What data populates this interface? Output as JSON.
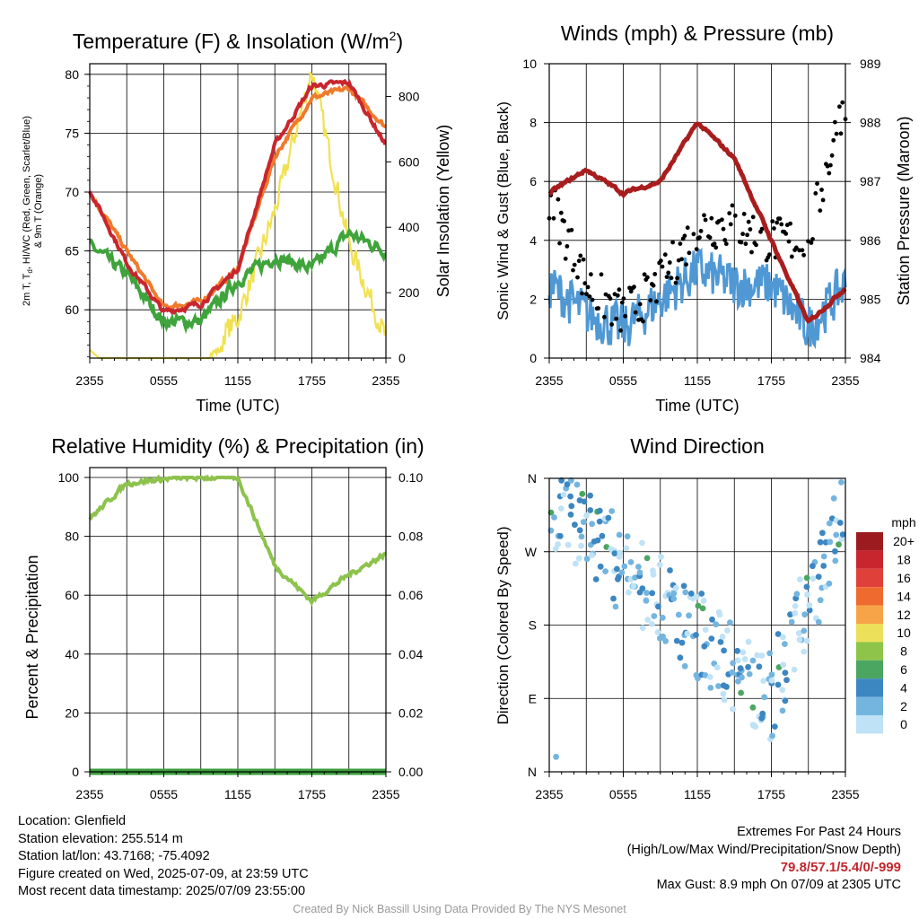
{
  "colors": {
    "red": "#c8262e",
    "orange": "#ef7a2c",
    "green": "#3fa43b",
    "yellow": "#f1e150",
    "maroon": "#a81d1d",
    "blue": "#4f98d4",
    "rh": "#8dc24c",
    "precip": "#3a9d3c"
  },
  "x_ticks": [
    "2355",
    "0555",
    "1155",
    "1755",
    "2355"
  ],
  "panels": {
    "temp": {
      "title_main": "Temperature (F) & Insolation (W/m",
      "title_sup": "2",
      "title_end": ")",
      "ylabel_line1": "2m T, T",
      "ylabel_sub": "d",
      "ylabel_line1_end": ", HI/WC (Red, Green, Scarlet/Blue)",
      "ylabel_line2": "& 9m T (Orange)",
      "y2label": "Solar Insolation (Yellow)",
      "xlabel": "Time (UTC)",
      "yticks": [
        "60",
        "65",
        "70",
        "75",
        "80"
      ],
      "y2ticks": [
        "0",
        "200",
        "400",
        "600",
        "800"
      ]
    },
    "wind": {
      "title": "Winds (mph) & Pressure (mb)",
      "ylabel": "Sonic Wind & Gust (Blue, Black)",
      "y2label": "Station Pressure (Maroon)",
      "xlabel": "Time (UTC)",
      "yticks": [
        "0",
        "2",
        "4",
        "6",
        "8",
        "10"
      ],
      "y2ticks": [
        "984",
        "985",
        "986",
        "987",
        "988",
        "989"
      ]
    },
    "rh": {
      "title": "Relative Humidity (%) & Precipitation (in)",
      "ylabel": "Percent & Precipitation",
      "yticks": [
        "0",
        "20",
        "40",
        "60",
        "80",
        "100"
      ],
      "y2ticks": [
        "0.00",
        "0.02",
        "0.04",
        "0.06",
        "0.08",
        "0.10"
      ]
    },
    "dir": {
      "title": "Wind Direction",
      "ylabel": "Direction (Colored By Speed)",
      "yticks": [
        "N",
        "E",
        "S",
        "W",
        "N"
      ],
      "legend_title": "mph",
      "legend_labels": [
        "20+",
        "18",
        "16",
        "14",
        "12",
        "10",
        "8",
        "6",
        "4",
        "2",
        "0"
      ],
      "legend_colors": [
        "#9b1b1e",
        "#c8262e",
        "#e0403a",
        "#ef6a2e",
        "#f6a447",
        "#ece05a",
        "#8ec44a",
        "#4aa661",
        "#3c86c2",
        "#74b5e0",
        "#bfe2f6"
      ]
    }
  },
  "chart_data": [
    {
      "type": "line",
      "title": "Temperature (F) & Insolation (W/m2)",
      "xlabel": "Time (UTC)",
      "x": [
        "2355",
        "0255",
        "0555",
        "0855",
        "1155",
        "1455",
        "1755",
        "2055",
        "2355"
      ],
      "ylim": [
        55.9,
        80.9
      ],
      "y2lim": [
        0,
        900
      ],
      "series": [
        {
          "name": "2m T (Red)",
          "values": [
            70.2,
            64.0,
            59.8,
            60.5,
            63.5,
            74.0,
            79.0,
            79.3,
            74.0
          ]
        },
        {
          "name": "9m T (Orange)",
          "values": [
            70.0,
            65.0,
            60.2,
            60.7,
            63.5,
            73.0,
            78.0,
            78.8,
            75.5
          ]
        },
        {
          "name": "Td (Green)",
          "values": [
            65.5,
            63.0,
            59.0,
            59.0,
            62.5,
            64.5,
            63.5,
            66.5,
            65.0
          ]
        },
        {
          "name": "Solar Insolation (Yellow)",
          "axis": "y2",
          "values": [
            30,
            0,
            0,
            0,
            120,
            450,
            880,
            350,
            60
          ]
        }
      ]
    },
    {
      "type": "line",
      "title": "Winds (mph) & Pressure (mb)",
      "xlabel": "Time (UTC)",
      "x": [
        "2355",
        "0255",
        "0555",
        "0855",
        "1155",
        "1455",
        "1755",
        "2055",
        "2355"
      ],
      "ylim": [
        0,
        10
      ],
      "y2lim": [
        984,
        989
      ],
      "series": [
        {
          "name": "Sonic Wind (Blue)",
          "values": [
            2.5,
            1.5,
            1.0,
            2.0,
            3.0,
            2.5,
            2.5,
            1.0,
            2.5
          ]
        },
        {
          "name": "Gust (Black)",
          "type": "scatter",
          "values": [
            5.5,
            2.5,
            1.5,
            2.5,
            4.5,
            4.5,
            4.0,
            4.0,
            8.9
          ]
        },
        {
          "name": "Station Pressure (Maroon)",
          "axis": "y2",
          "values": [
            986.8,
            987.2,
            986.8,
            987.0,
            988.0,
            987.4,
            986.0,
            984.6,
            985.2
          ]
        }
      ]
    },
    {
      "type": "line",
      "title": "Relative Humidity (%) & Precipitation (in)",
      "x": [
        "2355",
        "0255",
        "0555",
        "0855",
        "1155",
        "1455",
        "1755",
        "2055",
        "2355"
      ],
      "ylim": [
        0,
        100
      ],
      "y2lim": [
        0,
        0.1
      ],
      "series": [
        {
          "name": "Relative Humidity",
          "values": [
            86,
            98,
            99.5,
            100,
            100,
            70,
            58,
            67,
            74
          ]
        },
        {
          "name": "Precipitation",
          "axis": "y2",
          "values": [
            0,
            0,
            0,
            0,
            0,
            0,
            0,
            0,
            0
          ]
        }
      ]
    },
    {
      "type": "scatter",
      "title": "Wind Direction",
      "ylabel": "Direction (Colored By Speed)",
      "x": [
        "2355",
        "0555",
        "1155",
        "1755",
        "2355"
      ],
      "y_categories": [
        "N",
        "E",
        "S",
        "W",
        "N"
      ],
      "direction_trend_deg": [
        330,
        250,
        170,
        90,
        320
      ]
    }
  ],
  "footer": {
    "location": "Location: Glenfield",
    "elevation": "Station elevation: 255.514 m",
    "latlon": "Station lat/lon: 43.7168; -75.4092",
    "created": "Figure created on Wed, 2025-07-09, at 23:59 UTC",
    "recent": "Most recent data timestamp: 2025/07/09 23:55:00",
    "extremes_title": "Extremes For Past 24 Hours",
    "extremes_sub": "(High/Low/Max Wind/Precipitation/Snow Depth)",
    "extremes_values": "79.8/57.1/5.4/0/-999",
    "max_gust": "Max Gust: 8.9 mph On 07/09 at 2305 UTC",
    "credit": "Created By Nick Bassill Using Data Provided By The NYS Mesonet"
  }
}
